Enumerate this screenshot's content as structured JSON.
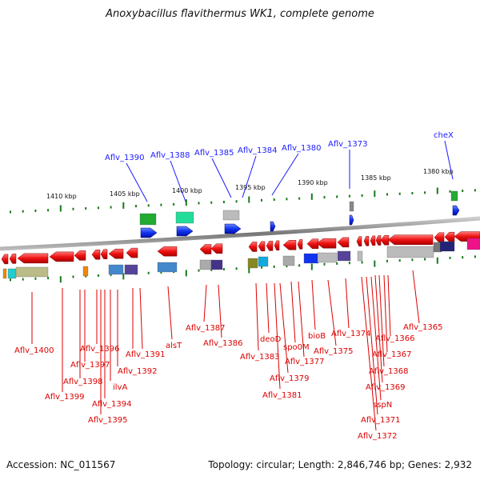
{
  "title": "Anoxybacillus flavithermus WK1, complete genome",
  "footer": {
    "accession": "Accession: NC_011567",
    "topology": "Topology: circular; Length: 2,846,746 bp; Genes: 2,932"
  },
  "scale_labels": [
    "1410 kbp",
    "1405 kbp",
    "1400 kbp",
    "1395 kbp",
    "1390 kbp",
    "1385 kbp",
    "1380 kbp"
  ],
  "top_labels": [
    "Aflv_1390",
    "Aflv_1388",
    "Aflv_1385",
    "Aflv_1384",
    "Aflv_1380",
    "Aflv_1373",
    "cheX"
  ],
  "bottom_labels": [
    "Aflv_1400",
    "Aflv_1399",
    "Aflv_1398",
    "Aflv_1397",
    "Aflv_1396",
    "Aflv_1395",
    "Aflv_1394",
    "ilvA",
    "Aflv_1392",
    "Aflv_1391",
    "alsT",
    "Aflv_1387",
    "Aflv_1386",
    "Aflv_1383",
    "deoD",
    "Aflv_1381",
    "Aflv_1379",
    "spo0M",
    "Aflv_1377",
    "bioB",
    "Aflv_1375",
    "Aflv_1374",
    "Aflv_1372",
    "Aflv_1371",
    "sspN",
    "Aflv_1369",
    "Aflv_1368",
    "Aflv_1367",
    "Aflv_1366",
    "Aflv_1365"
  ],
  "colors": {
    "forward_label": "#1a1aff",
    "reverse_label": "#dd0000",
    "tick": "#1a7a1a",
    "backbone": "#808080",
    "gene_red": "#ee1111",
    "gene_blue": "#1133ee"
  }
}
